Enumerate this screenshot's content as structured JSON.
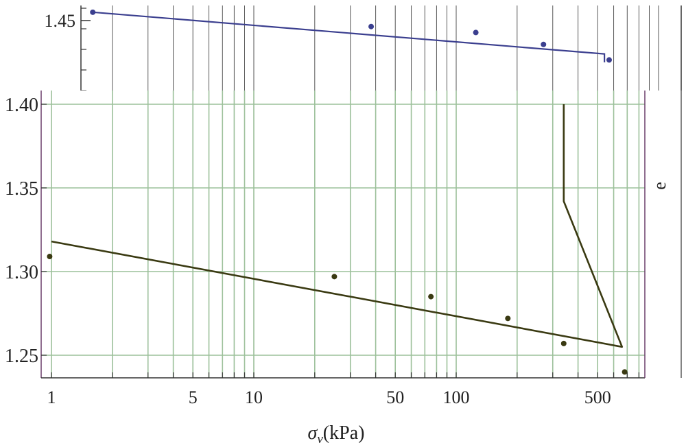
{
  "chart_data": [
    {
      "type": "scatter",
      "xscale": "log",
      "ylim_visible": [
        1.42,
        1.46
      ],
      "yticks": [
        {
          "value": 1.45,
          "label": "1.45"
        }
      ],
      "series": [
        {
          "points": [
            [
              1.6,
              1.457
            ],
            [
              38,
              1.445
            ],
            [
              125,
              1.44
            ],
            [
              270,
              1.43
            ],
            [
              570,
              1.417
            ]
          ],
          "fit_line": [
            [
              1.6,
              1.457
            ],
            [
              540,
              1.422
            ],
            [
              540,
              1.415
            ]
          ],
          "color": "#3b3f8f"
        }
      ],
      "grid": true
    },
    {
      "type": "scatter",
      "xscale": "log",
      "xlim": [
        0.9,
        820
      ],
      "ylim": [
        1.235,
        1.4
      ],
      "xticks": [
        {
          "value": 1,
          "label": "1"
        },
        {
          "value": 5,
          "label": "5"
        },
        {
          "value": 10,
          "label": "10"
        },
        {
          "value": 50,
          "label": "50"
        },
        {
          "value": 100,
          "label": "100"
        },
        {
          "value": 500,
          "label": "500"
        }
      ],
      "yticks": [
        {
          "value": 1.4,
          "label": "1.40"
        },
        {
          "value": 1.35,
          "label": "1.35"
        },
        {
          "value": 1.3,
          "label": "1.30"
        },
        {
          "value": 1.25,
          "label": "1.25"
        }
      ],
      "xlabel": "σv(kPa)",
      "ylabel": "e",
      "series": [
        {
          "points": [
            [
              0.98,
              1.309
            ],
            [
              25,
              1.297
            ],
            [
              75,
              1.285
            ],
            [
              180,
              1.272
            ],
            [
              340,
              1.257
            ],
            [
              680,
              1.24
            ]
          ],
          "fit_line": [
            [
              1,
              1.318
            ],
            [
              660,
              1.255
            ],
            [
              340,
              1.342
            ],
            [
              340,
              1.4
            ]
          ],
          "color": "#3a3a12"
        }
      ],
      "grid": true
    }
  ]
}
